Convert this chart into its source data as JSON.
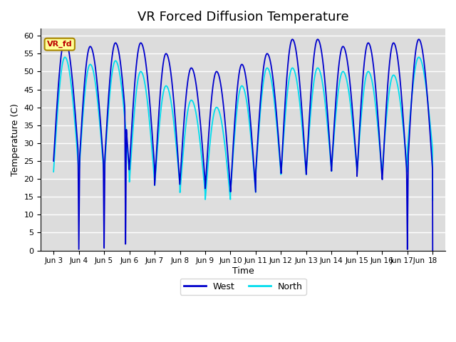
{
  "title": "VR Forced Diffusion Temperature",
  "ylabel": "Temperature (C)",
  "xlabel": "Time",
  "ylim": [
    0,
    62
  ],
  "bg_color": "#dcdcdc",
  "west_color": "#0000cc",
  "north_color": "#00ddee",
  "annotation_text": "VR_fd",
  "annotation_bg": "#ffff99",
  "annotation_border": "#aa8800",
  "annotation_text_color": "#bb0000",
  "title_fontsize": 13,
  "line_width": 1.3,
  "grid_color": "#c0c0c0",
  "band_color": "#e8e8e8"
}
